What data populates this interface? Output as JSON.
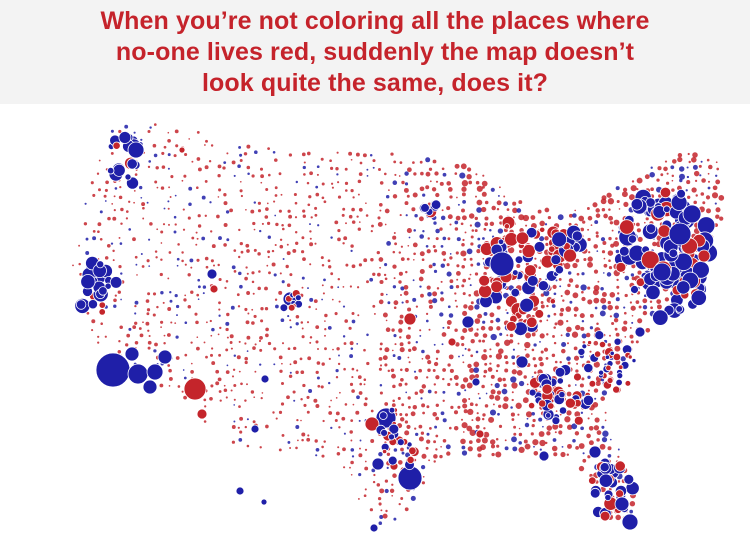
{
  "headline": {
    "lines": [
      "When you’re not coloring all the places where",
      "no-one lives red, suddenly the map doesn’t",
      "look quite the same, does it?"
    ]
  },
  "legend_colors": {
    "blue": "#1f1fa8",
    "red": "#c4252b"
  },
  "map": {
    "type": "proportional-circle map",
    "region": "contiguous United States",
    "bubble_colors": [
      "blue",
      "red"
    ]
  }
}
